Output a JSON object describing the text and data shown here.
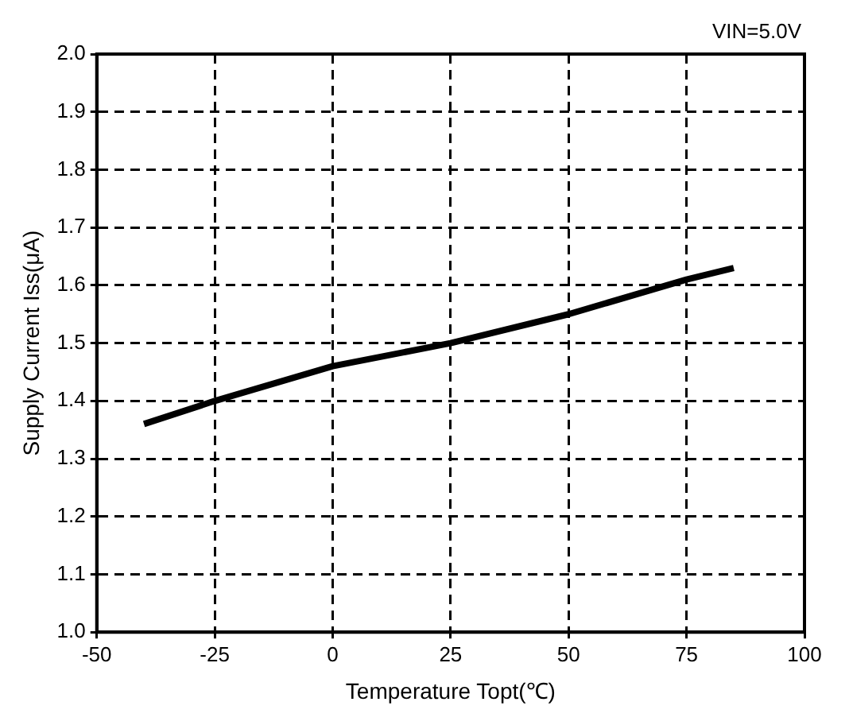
{
  "chart_data": {
    "type": "line",
    "xlabel": "Temperature Topt(℃)",
    "ylabel": "Supply Current Iss(μA)",
    "annotations": [
      "VIN=5.0V"
    ],
    "x": [
      -40,
      -25,
      0,
      25,
      50,
      75,
      85
    ],
    "series": [
      {
        "color": "#000000",
        "values": [
          1.36,
          1.4,
          1.46,
          1.5,
          1.55,
          1.61,
          1.63
        ]
      }
    ],
    "xlim": [
      -50,
      100
    ],
    "xticks": [
      -50,
      -25,
      0,
      25,
      50,
      75,
      100
    ],
    "ylim": [
      1.0,
      2.0
    ],
    "yticks": [
      {
        "value": 1.0,
        "label": "1.0"
      },
      {
        "value": 1.1,
        "label": "1.1"
      },
      {
        "value": 1.2,
        "label": "1.2"
      },
      {
        "value": 1.3,
        "label": "1.3"
      },
      {
        "value": 1.4,
        "label": "1.4"
      },
      {
        "value": 1.5,
        "label": "1.5"
      },
      {
        "value": 1.6,
        "label": "1.6"
      },
      {
        "value": 1.7,
        "label": "1.7"
      },
      {
        "value": 1.8,
        "label": "1.8"
      },
      {
        "value": 1.9,
        "label": "1.9"
      },
      {
        "value": 2.0,
        "label": "2.0"
      }
    ],
    "grid": true,
    "marker": "none",
    "legend": false
  }
}
